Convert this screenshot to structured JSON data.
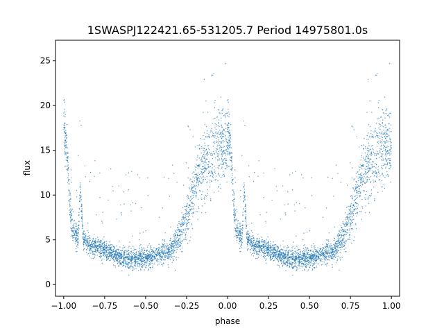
{
  "chart_data": {
    "type": "scatter",
    "title": "1SWASPJ122421.65-531205.7 Period 14975801.0s",
    "xlabel": "phase",
    "ylabel": "flux",
    "xlim": [
      -1.05,
      1.05
    ],
    "ylim": [
      -1.3,
      27.3
    ],
    "xticks": [
      -1.0,
      -0.75,
      -0.5,
      -0.25,
      0.0,
      0.25,
      0.5,
      0.75,
      1.0
    ],
    "xtick_labels": [
      "−1.00",
      "−0.75",
      "−0.50",
      "−0.25",
      "0.00",
      "0.25",
      "0.50",
      "0.75",
      "1.00"
    ],
    "yticks": [
      0,
      5,
      10,
      15,
      20,
      25
    ],
    "ytick_labels": [
      "0",
      "5",
      "10",
      "15",
      "20",
      "25"
    ],
    "grid": false,
    "marker_color": "#1f77b4",
    "series": [
      {
        "phase": [
          0.0,
          0.02,
          0.04,
          0.05,
          0.07,
          0.09,
          0.1,
          0.12,
          0.15,
          0.2,
          0.25,
          0.3,
          0.35,
          0.4,
          0.45,
          0.5,
          0.55,
          0.6,
          0.65,
          0.7,
          0.75,
          0.8,
          0.85,
          0.9,
          0.95,
          1.0
        ],
        "flux_center": [
          18.0,
          15.0,
          8.5,
          6.5,
          5.5,
          5.0,
          11.0,
          5.0,
          4.5,
          4.2,
          3.8,
          3.3,
          3.0,
          2.9,
          2.9,
          3.0,
          3.1,
          3.4,
          3.8,
          5.2,
          7.5,
          11.0,
          13.0,
          14.0,
          15.5,
          15.0
        ],
        "note_spread": [
          3.0,
          2.0,
          2.0,
          1.5,
          1.5,
          1.2,
          1.0,
          1.2,
          1.0,
          1.0,
          1.0,
          1.0,
          1.0,
          1.0,
          1.0,
          1.0,
          1.0,
          1.0,
          1.2,
          1.5,
          2.5,
          3.0,
          3.5,
          4.0,
          4.5,
          3.0
        ]
      }
    ]
  }
}
